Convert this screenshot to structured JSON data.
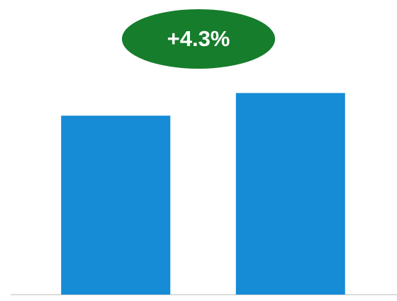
{
  "chart_data": {
    "type": "bar",
    "annotation": "+4.3%",
    "categories": [
      null,
      null
    ],
    "values": [
      100,
      104.3
    ],
    "color": "#168bd6",
    "annotation_color": "#167d2c",
    "ylim": [
      66,
      110
    ]
  }
}
